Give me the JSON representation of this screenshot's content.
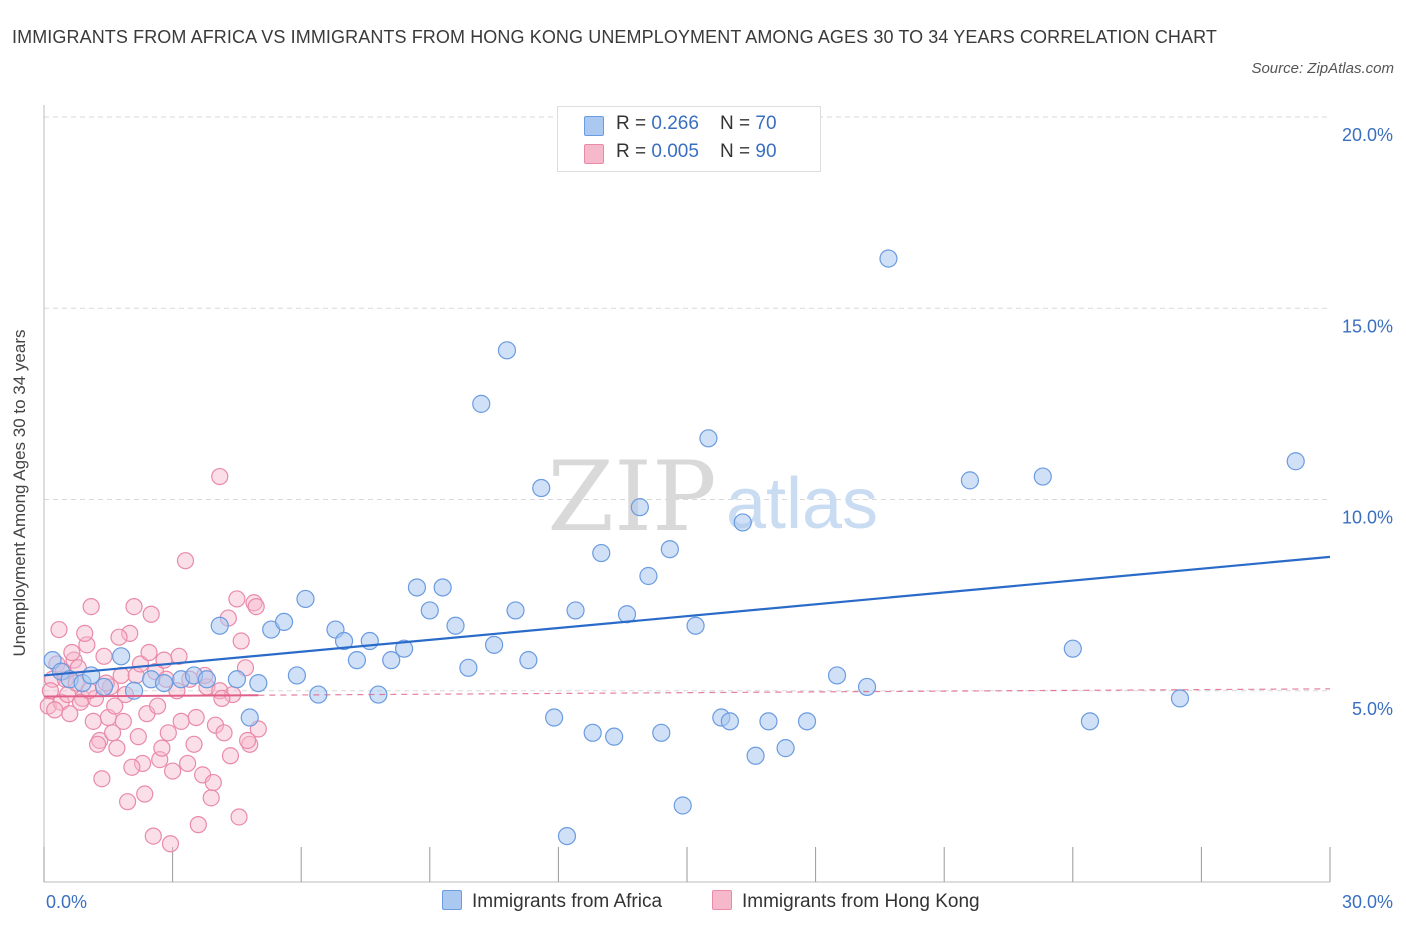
{
  "title": "IMMIGRANTS FROM AFRICA VS IMMIGRANTS FROM HONG KONG UNEMPLOYMENT AMONG AGES 30 TO 34 YEARS CORRELATION CHART",
  "source": "Source: ZipAtlas.com",
  "watermark": {
    "zip": "ZIP",
    "atlas": "atlas"
  },
  "colors": {
    "africa_fill": "#aac8f0",
    "africa_stroke": "#6b9be0",
    "africa_line": "#2a6bc9",
    "hk_fill": "#f6b8cb",
    "hk_stroke": "#e98aa8",
    "hk_line": "#e0608a",
    "tick_label": "#3a6fc0",
    "grid": "#d8d8d8"
  },
  "legend": {
    "rows": [
      {
        "r_label": "R = ",
        "r_value": "0.266",
        "n_label": "N = ",
        "n_value": "70"
      },
      {
        "r_label": "R = ",
        "r_value": "0.005",
        "n_label": "N = ",
        "n_value": "90"
      }
    ]
  },
  "bottom_legend": {
    "africa": "Immigrants from Africa",
    "hk": "Immigrants from Hong Kong"
  },
  "chart_data": {
    "type": "scatter",
    "title": "IMMIGRANTS FROM AFRICA VS IMMIGRANTS FROM HONG KONG UNEMPLOYMENT AMONG AGES 30 TO 34 YEARS CORRELATION CHART",
    "xlabel": "",
    "ylabel": "Unemployment Among Ages 30 to 34 years",
    "xlim": [
      0,
      30
    ],
    "ylim": [
      0,
      20
    ],
    "x_tick_labels": [
      "0.0%",
      "30.0%"
    ],
    "y_ticks": [
      5,
      10,
      15,
      20
    ],
    "y_tick_labels": [
      "5.0%",
      "10.0%",
      "15.0%",
      "20.0%"
    ],
    "grid": true,
    "legend_placement": "top-center",
    "series": [
      {
        "name": "Immigrants from Africa",
        "R": 0.266,
        "N": 70,
        "trend": {
          "x": [
            0,
            30
          ],
          "y": [
            5.4,
            8.5
          ],
          "style": "solid"
        },
        "points": [
          [
            0.2,
            5.8
          ],
          [
            0.4,
            5.5
          ],
          [
            0.6,
            5.3
          ],
          [
            0.9,
            5.2
          ],
          [
            1.1,
            5.4
          ],
          [
            1.4,
            5.1
          ],
          [
            1.8,
            5.9
          ],
          [
            2.1,
            5.0
          ],
          [
            2.5,
            5.3
          ],
          [
            2.8,
            5.2
          ],
          [
            3.2,
            5.3
          ],
          [
            3.5,
            5.4
          ],
          [
            3.8,
            5.3
          ],
          [
            4.1,
            6.7
          ],
          [
            4.5,
            5.3
          ],
          [
            4.8,
            4.3
          ],
          [
            5.0,
            5.2
          ],
          [
            5.3,
            6.6
          ],
          [
            5.6,
            6.8
          ],
          [
            5.9,
            5.4
          ],
          [
            6.1,
            7.4
          ],
          [
            6.4,
            4.9
          ],
          [
            6.8,
            6.6
          ],
          [
            7.0,
            6.3
          ],
          [
            7.3,
            5.8
          ],
          [
            7.6,
            6.3
          ],
          [
            7.8,
            4.9
          ],
          [
            8.1,
            5.8
          ],
          [
            8.4,
            6.1
          ],
          [
            8.7,
            7.7
          ],
          [
            9.0,
            7.1
          ],
          [
            9.3,
            7.7
          ],
          [
            9.6,
            6.7
          ],
          [
            9.9,
            5.6
          ],
          [
            10.2,
            12.5
          ],
          [
            10.5,
            6.2
          ],
          [
            10.8,
            13.9
          ],
          [
            11.0,
            7.1
          ],
          [
            11.3,
            5.8
          ],
          [
            11.6,
            10.3
          ],
          [
            11.9,
            4.3
          ],
          [
            12.2,
            1.2
          ],
          [
            12.4,
            7.1
          ],
          [
            12.8,
            3.9
          ],
          [
            13.0,
            8.6
          ],
          [
            13.3,
            3.8
          ],
          [
            13.6,
            7.0
          ],
          [
            13.9,
            9.8
          ],
          [
            14.1,
            8.0
          ],
          [
            14.4,
            3.9
          ],
          [
            14.6,
            8.7
          ],
          [
            14.9,
            2.0
          ],
          [
            15.2,
            6.7
          ],
          [
            15.5,
            11.6
          ],
          [
            15.8,
            4.3
          ],
          [
            16.0,
            4.2
          ],
          [
            16.3,
            9.4
          ],
          [
            16.6,
            3.3
          ],
          [
            16.9,
            4.2
          ],
          [
            17.3,
            3.5
          ],
          [
            17.8,
            4.2
          ],
          [
            18.5,
            5.4
          ],
          [
            19.2,
            5.1
          ],
          [
            19.7,
            16.3
          ],
          [
            21.6,
            10.5
          ],
          [
            23.3,
            10.6
          ],
          [
            24.0,
            6.1
          ],
          [
            24.4,
            4.2
          ],
          [
            26.5,
            4.8
          ],
          [
            29.2,
            11.0
          ]
        ]
      },
      {
        "name": "Immigrants from Hong Kong",
        "R": 0.005,
        "N": 90,
        "trend": {
          "x": [
            0,
            30
          ],
          "y": [
            4.85,
            5.05
          ],
          "style": "solid-then-dashed",
          "solid_until_x": 5.0
        },
        "points": [
          [
            0.1,
            4.6
          ],
          [
            0.2,
            5.3
          ],
          [
            0.3,
            5.7
          ],
          [
            0.4,
            4.7
          ],
          [
            0.5,
            5.3
          ],
          [
            0.6,
            4.4
          ],
          [
            0.7,
            5.8
          ],
          [
            0.8,
            5.6
          ],
          [
            0.9,
            4.8
          ],
          [
            1.0,
            6.2
          ],
          [
            1.1,
            7.2
          ],
          [
            1.2,
            4.8
          ],
          [
            1.3,
            3.7
          ],
          [
            1.4,
            5.9
          ],
          [
            1.5,
            4.3
          ],
          [
            1.6,
            3.9
          ],
          [
            1.7,
            3.5
          ],
          [
            1.8,
            5.4
          ],
          [
            1.9,
            4.9
          ],
          [
            2.0,
            6.5
          ],
          [
            2.1,
            7.2
          ],
          [
            2.2,
            3.8
          ],
          [
            2.3,
            3.1
          ],
          [
            2.4,
            4.4
          ],
          [
            2.5,
            7.0
          ],
          [
            2.6,
            5.5
          ],
          [
            2.7,
            3.2
          ],
          [
            2.8,
            5.8
          ],
          [
            2.9,
            3.9
          ],
          [
            3.0,
            2.9
          ],
          [
            3.1,
            5.0
          ],
          [
            3.2,
            4.2
          ],
          [
            3.3,
            8.4
          ],
          [
            3.4,
            5.3
          ],
          [
            3.5,
            3.6
          ],
          [
            3.6,
            1.5
          ],
          [
            3.7,
            2.8
          ],
          [
            3.8,
            5.1
          ],
          [
            3.9,
            2.2
          ],
          [
            4.0,
            4.1
          ],
          [
            4.1,
            5.0
          ],
          [
            4.2,
            3.9
          ],
          [
            4.3,
            6.9
          ],
          [
            4.4,
            4.9
          ],
          [
            4.5,
            7.4
          ],
          [
            4.6,
            6.3
          ],
          [
            4.7,
            5.6
          ],
          [
            4.8,
            3.6
          ],
          [
            4.9,
            7.3
          ],
          [
            5.0,
            4.0
          ],
          [
            0.15,
            5.0
          ],
          [
            0.35,
            6.6
          ],
          [
            0.55,
            4.9
          ],
          [
            0.75,
            5.2
          ],
          [
            0.95,
            6.5
          ],
          [
            1.15,
            4.2
          ],
          [
            1.35,
            2.7
          ],
          [
            1.55,
            5.1
          ],
          [
            1.75,
            6.4
          ],
          [
            1.95,
            2.1
          ],
          [
            2.15,
            5.4
          ],
          [
            2.35,
            2.3
          ],
          [
            2.55,
            1.2
          ],
          [
            2.75,
            3.5
          ],
          [
            2.95,
            1.0
          ],
          [
            3.15,
            5.9
          ],
          [
            3.35,
            3.1
          ],
          [
            3.55,
            4.3
          ],
          [
            3.75,
            5.4
          ],
          [
            3.95,
            2.6
          ],
          [
            4.15,
            4.8
          ],
          [
            4.35,
            3.3
          ],
          [
            4.55,
            1.7
          ],
          [
            4.75,
            3.7
          ],
          [
            4.95,
            7.2
          ],
          [
            0.25,
            4.5
          ],
          [
            0.45,
            5.5
          ],
          [
            0.65,
            6.0
          ],
          [
            0.85,
            4.7
          ],
          [
            1.05,
            5.0
          ],
          [
            1.25,
            3.6
          ],
          [
            1.45,
            5.2
          ],
          [
            1.65,
            4.6
          ],
          [
            1.85,
            4.2
          ],
          [
            2.05,
            3.0
          ],
          [
            2.25,
            5.7
          ],
          [
            2.45,
            6.0
          ],
          [
            2.65,
            4.6
          ],
          [
            2.85,
            5.3
          ],
          [
            4.1,
            10.6
          ]
        ]
      }
    ]
  }
}
